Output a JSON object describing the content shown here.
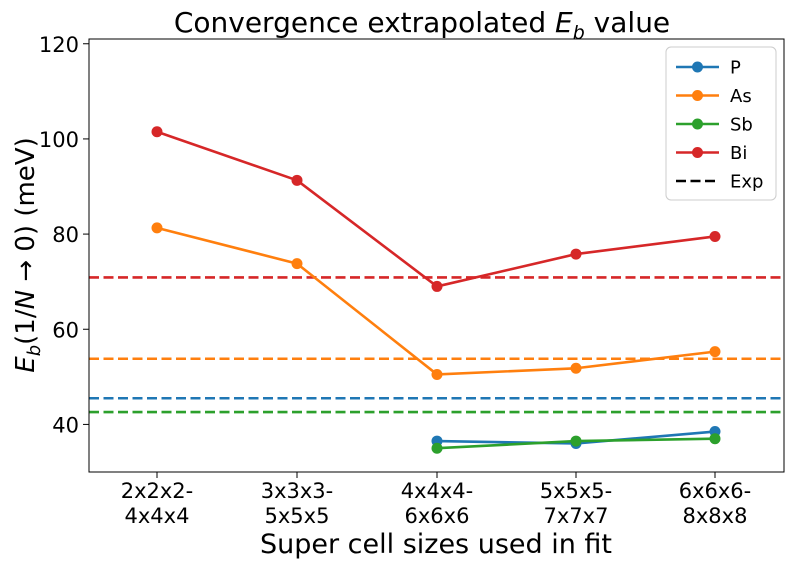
{
  "chart_data": {
    "type": "line",
    "title_main": "Convergence extrapolated ",
    "title_symbol": "E",
    "title_subscript": "b",
    "title_suffix": " value",
    "xlabel": "Super cell sizes used in fit",
    "ylabel_symbol": "E",
    "ylabel_subscript": "b",
    "ylabel_open": "(1/",
    "ylabel_N": "N",
    "ylabel_rest": " → 0) (meV)",
    "categories": [
      [
        "2x2x2-",
        "4x4x4"
      ],
      [
        "3x3x3-",
        "5x5x5"
      ],
      [
        "4x4x4-",
        "6x6x6"
      ],
      [
        "5x5x5-",
        "7x7x7"
      ],
      [
        "6x6x6-",
        "8x8x8"
      ]
    ],
    "ylim": [
      30,
      121
    ],
    "yticks": [
      40,
      60,
      80,
      100,
      120
    ],
    "series": [
      {
        "name": "P",
        "color": "#1f77b4",
        "values": [
          null,
          null,
          36.5,
          36.0,
          38.5
        ]
      },
      {
        "name": "As",
        "color": "#ff7f0e",
        "values": [
          81.3,
          73.8,
          50.5,
          51.8,
          55.3
        ]
      },
      {
        "name": "Sb",
        "color": "#2ca02c",
        "values": [
          null,
          null,
          35.0,
          36.5,
          37.0
        ]
      },
      {
        "name": "Bi",
        "color": "#d62728",
        "values": [
          101.5,
          91.3,
          69.0,
          75.8,
          79.5
        ]
      }
    ],
    "exp_lines": [
      {
        "name": "P",
        "color": "#1f77b4",
        "value": 45.5
      },
      {
        "name": "As",
        "color": "#ff7f0e",
        "value": 53.8
      },
      {
        "name": "Sb",
        "color": "#2ca02c",
        "value": 42.6
      },
      {
        "name": "Bi",
        "color": "#d62728",
        "value": 70.9
      }
    ],
    "legend": {
      "placement": "top-right",
      "entries": [
        {
          "label": "P",
          "color": "#1f77b4",
          "style": "marker-line"
        },
        {
          "label": "As",
          "color": "#ff7f0e",
          "style": "marker-line"
        },
        {
          "label": "Sb",
          "color": "#2ca02c",
          "style": "marker-line"
        },
        {
          "label": "Bi",
          "color": "#d62728",
          "style": "marker-line"
        },
        {
          "label": "Exp",
          "color": "#000000",
          "style": "dashed"
        }
      ]
    }
  }
}
